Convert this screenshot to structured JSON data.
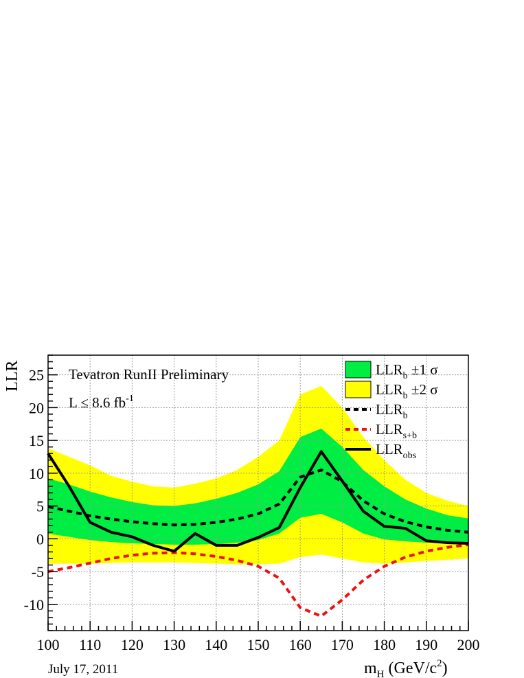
{
  "chart_data": {
    "type": "line",
    "title": "",
    "annotations": [
      "Tevatron RunII Preliminary",
      "L ≤ 8.6 fb",
      "-1"
    ],
    "xlabel": {
      "main": "m",
      "sub": "H",
      "unit": " (GeV/c",
      "sup": "2",
      "close": ")"
    },
    "ylabel": "LLR",
    "date": "July 17, 2011",
    "xlim": [
      100,
      200
    ],
    "ylim": [
      -14,
      28
    ],
    "x_ticks": [
      100,
      110,
      120,
      130,
      140,
      150,
      160,
      170,
      180,
      190,
      200
    ],
    "y_ticks": [
      -10,
      -5,
      0,
      5,
      10,
      15,
      20,
      25
    ],
    "grid": true,
    "legend_position": "top-right",
    "colors": {
      "band1": "#00ee44",
      "band2": "#ffff00",
      "expected_b": "#000000",
      "expected_sb": "#ee1111",
      "observed": "#000000"
    },
    "x": [
      100,
      105,
      110,
      115,
      120,
      125,
      130,
      135,
      140,
      145,
      150,
      155,
      160,
      165,
      170,
      175,
      180,
      185,
      190,
      195,
      200
    ],
    "series": [
      {
        "name": "LLR_b ±2 σ",
        "kind": "band",
        "lower": [
          -3.8,
          -3.8,
          -3.8,
          -3.7,
          -3.6,
          -3.6,
          -3.6,
          -3.7,
          -3.8,
          -3.9,
          -3.9,
          -3.8,
          -2.8,
          -2.4,
          -3.0,
          -3.6,
          -3.8,
          -3.6,
          -3.4,
          -3.2,
          -3.0
        ],
        "upper": [
          13.8,
          12.5,
          11.2,
          9.6,
          8.7,
          8.0,
          7.8,
          8.4,
          9.2,
          10.5,
          12.5,
          15.0,
          22.0,
          23.3,
          20.0,
          15.5,
          12.0,
          9.0,
          7.0,
          5.8,
          5.0
        ]
      },
      {
        "name": "LLR_b ±1 σ",
        "kind": "band",
        "lower": [
          0.8,
          0.3,
          -0.2,
          -0.5,
          -0.7,
          -0.8,
          -0.9,
          -0.9,
          -0.8,
          -0.6,
          -0.2,
          0.8,
          3.2,
          3.8,
          2.5,
          0.8,
          -0.1,
          -0.4,
          -0.6,
          -0.6,
          -0.6
        ],
        "upper": [
          9.2,
          8.3,
          7.2,
          6.3,
          5.6,
          5.1,
          5.0,
          5.4,
          6.1,
          7.0,
          8.3,
          10.3,
          15.5,
          16.8,
          14.0,
          10.5,
          8.0,
          6.0,
          4.6,
          3.6,
          3.1
        ]
      },
      {
        "name": "LLR_b",
        "kind": "line",
        "style": "dashed",
        "color": "#000000",
        "values": [
          4.9,
          4.2,
          3.5,
          3.0,
          2.6,
          2.3,
          2.1,
          2.2,
          2.5,
          3.0,
          3.8,
          5.3,
          9.4,
          10.5,
          8.7,
          5.8,
          3.8,
          2.6,
          1.8,
          1.3,
          1.0
        ]
      },
      {
        "name": "LLR_s+b",
        "kind": "line",
        "style": "dashed",
        "color": "#ee1111",
        "values": [
          -5.0,
          -4.4,
          -3.7,
          -3.0,
          -2.5,
          -2.2,
          -2.1,
          -2.3,
          -2.7,
          -3.3,
          -4.2,
          -6.0,
          -10.5,
          -11.8,
          -9.3,
          -6.3,
          -4.2,
          -2.8,
          -1.9,
          -1.3,
          -0.9
        ]
      },
      {
        "name": "LLR_obs",
        "kind": "line",
        "style": "solid",
        "color": "#000000",
        "values": [
          13.0,
          8.0,
          2.5,
          1.0,
          0.3,
          -1.0,
          -1.9,
          0.8,
          -1.0,
          -1.0,
          0.2,
          1.7,
          7.8,
          13.3,
          8.8,
          4.2,
          1.9,
          1.6,
          -0.3,
          -0.6,
          -0.7
        ]
      }
    ],
    "legend": [
      {
        "kind": "band",
        "color": "#00ee44",
        "main": "LLR",
        "sub": "b",
        "suffix": " ±1 σ"
      },
      {
        "kind": "band",
        "color": "#ffff00",
        "main": "LLR",
        "sub": "b",
        "suffix": " ±2 σ"
      },
      {
        "kind": "line",
        "style": "dashed",
        "color": "#000000",
        "main": "LLR",
        "sub": "b",
        "suffix": ""
      },
      {
        "kind": "line",
        "style": "dashed",
        "color": "#ee1111",
        "main": "LLR",
        "sub": "s+b",
        "suffix": ""
      },
      {
        "kind": "line",
        "style": "solid",
        "color": "#000000",
        "main": "LLR",
        "sub": "obs",
        "suffix": ""
      }
    ]
  }
}
